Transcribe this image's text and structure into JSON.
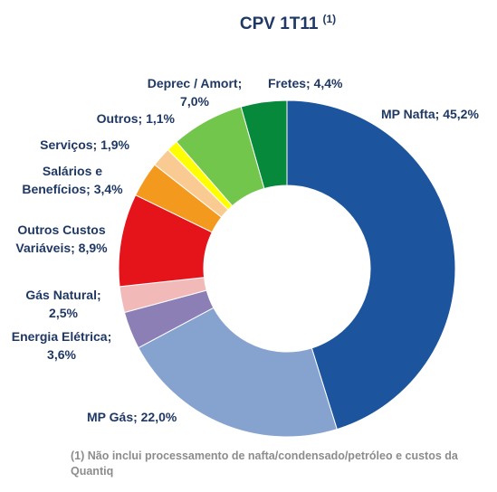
{
  "chart_data": {
    "type": "donut",
    "title": "CPV 1T11",
    "title_note": "(1)",
    "values": [
      45.2,
      22.0,
      3.6,
      2.5,
      8.9,
      3.4,
      1.9,
      1.1,
      7.0,
      4.4
    ],
    "value_labels": [
      "MP Nafta; 45,2%",
      "MP Gás; 22,0%",
      "Energia Elétrica;\n3,6%",
      "Gás Natural;\n2,5%",
      "Outros Custos\nVariáveis; 8,9%",
      "Salários e\nBenefícios; 3,4%",
      "Serviços; 1,9%",
      "Outros; 1,1%",
      "Deprec / Amort;\n7,0%",
      "Fretes; 4,4%"
    ],
    "colors": [
      "#1c559e",
      "#86a3d0",
      "#8b7fb6",
      "#f2b9b9",
      "#e5141b",
      "#f39a1e",
      "#f9cb93",
      "#ffff00",
      "#72c64c",
      "#07893b"
    ],
    "footnote": "(1) Não inclui processamento de nafta/condensado/petróleo e custos da Quantiq"
  }
}
